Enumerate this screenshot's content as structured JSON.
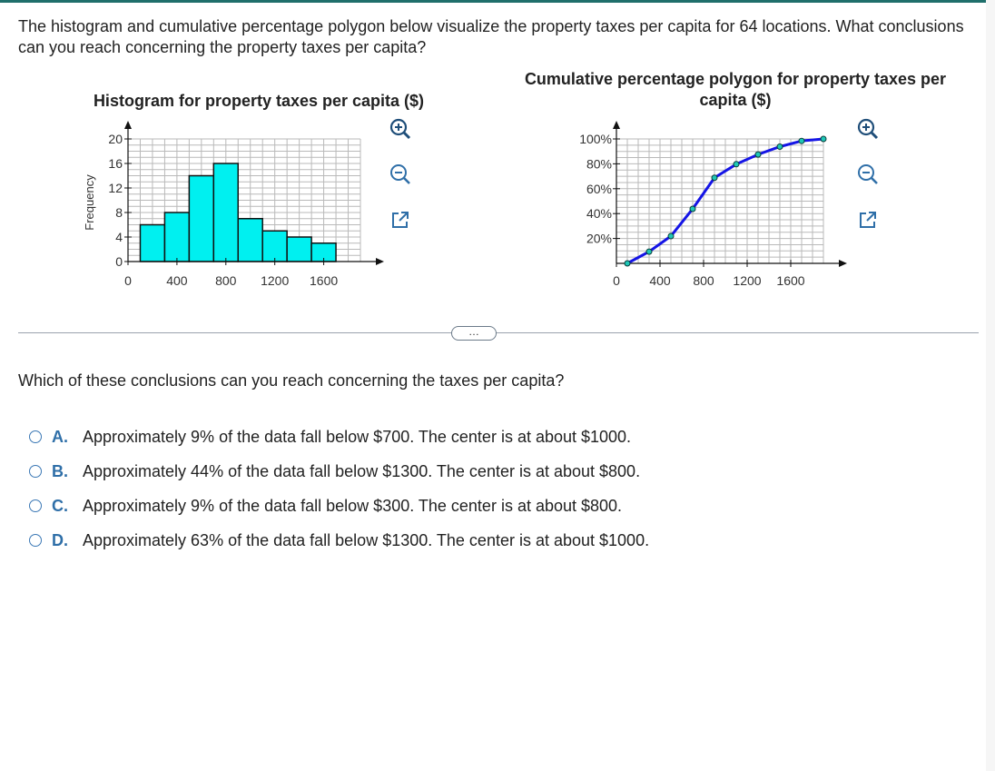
{
  "question_text": "The histogram and cumulative percentage polygon below visualize the property taxes per capita for 64 locations. What conclusions can you reach concerning the property taxes per capita?",
  "more_button_label": "…",
  "prompt": "Which of these conclusions can you reach concerning the taxes per capita?",
  "options": [
    {
      "letter": "A.",
      "text": "Approximately 9% of the data fall below $700. The center is at about $1000."
    },
    {
      "letter": "B.",
      "text": "Approximately 44% of the data fall below $1300. The center is at about $800."
    },
    {
      "letter": "C.",
      "text": "Approximately 9% of the data fall below $300. The center is at about $800."
    },
    {
      "letter": "D.",
      "text": "Approximately 63% of the data fall below $1300. The center is at about $1000."
    }
  ],
  "tools": [
    "zoom-in-icon",
    "zoom-out-icon",
    "popout-icon"
  ],
  "colors": {
    "bar_fill": "#00f0f0",
    "line": "#1515e6",
    "marker": "#1ec7b7",
    "option_letter": "#2f6fa8",
    "radio": "#3b78b5"
  },
  "chart_data": [
    {
      "type": "bar",
      "title": "Histogram for property taxes per capita ($)",
      "ylabel": "Frequency",
      "xlabel": "",
      "x_ticks": [
        0,
        400,
        800,
        1200,
        1600
      ],
      "y_ticks": [
        0,
        4,
        8,
        12,
        16,
        20
      ],
      "xlim": [
        0,
        1900
      ],
      "ylim": [
        0,
        20
      ],
      "bin_edges": [
        100,
        300,
        500,
        700,
        900,
        1100,
        1300,
        1500,
        1700
      ],
      "values": [
        6,
        8,
        14,
        16,
        7,
        5,
        4,
        3,
        1
      ],
      "grid": true
    },
    {
      "type": "line",
      "title": "Cumulative percentage polygon for property taxes per capita ($)",
      "ylabel": "",
      "xlabel": "",
      "x_ticks": [
        0,
        400,
        800,
        1200,
        1600
      ],
      "y_ticks": [
        "20%",
        "40%",
        "60%",
        "80%",
        "100%"
      ],
      "xlim": [
        0,
        1900
      ],
      "ylim": [
        0,
        100
      ],
      "x": [
        100,
        300,
        500,
        700,
        900,
        1100,
        1300,
        1500,
        1700,
        1900
      ],
      "y": [
        0,
        9.4,
        21.9,
        43.8,
        68.8,
        79.7,
        87.5,
        93.8,
        98.4,
        100
      ],
      "grid": true
    }
  ]
}
